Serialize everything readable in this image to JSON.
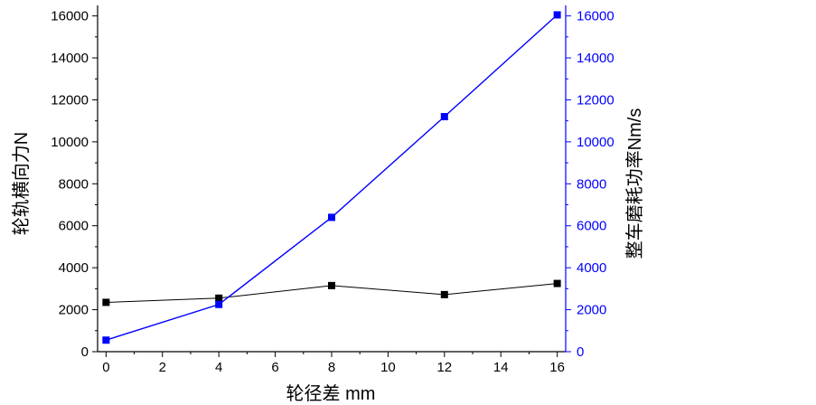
{
  "chart_data": {
    "type": "line",
    "xlabel": "轮径差 mm",
    "ylabel_left": "轮轨横向力N",
    "ylabel_right": "整车磨耗功率Nm/s",
    "xlim": [
      -0.3,
      16.3
    ],
    "ylim_left": [
      0,
      16500
    ],
    "ylim_right": [
      0,
      16500
    ],
    "x_ticks": [
      0,
      2,
      4,
      6,
      8,
      10,
      12,
      14,
      16
    ],
    "y_ticks_left": [
      0,
      2000,
      4000,
      6000,
      8000,
      10000,
      12000,
      14000,
      16000
    ],
    "y_ticks_right": [
      0,
      2000,
      4000,
      6000,
      8000,
      10000,
      12000,
      14000,
      16000
    ],
    "grid": false,
    "legend": "none",
    "series": [
      {
        "axis": "left",
        "color": "#000000",
        "x": [
          0,
          4,
          8,
          12,
          16
        ],
        "values": [
          2350,
          2550,
          3150,
          2720,
          3250
        ]
      },
      {
        "axis": "right",
        "color": "#0000ff",
        "x": [
          0,
          4,
          8,
          12,
          16
        ],
        "values": [
          550,
          2250,
          6400,
          11200,
          16050
        ]
      }
    ]
  }
}
